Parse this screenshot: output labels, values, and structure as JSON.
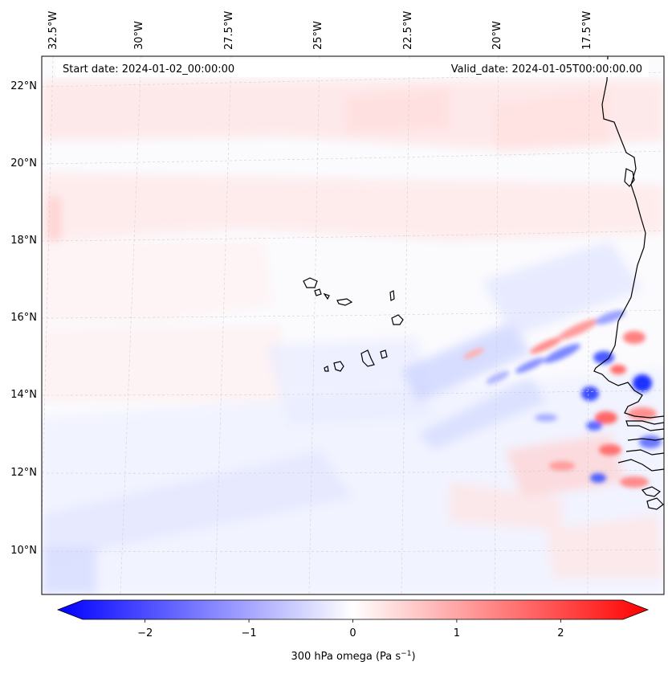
{
  "map": {
    "header": {
      "start_date": "Start date: 2024-01-02_00:00:00",
      "valid_date": "Valid_date: 2024-01-05T00:00:00.00"
    },
    "lon_labels": [
      "32.5°W",
      "30°W",
      "27.5°W",
      "25°W",
      "22.5°W",
      "20°W",
      "17.5°W"
    ],
    "lat_labels": [
      "22°N",
      "20°N",
      "18°N",
      "16°N",
      "14°N",
      "12°N",
      "10°N"
    ],
    "field": "300 hPa omega",
    "colorbar": {
      "label": "300 hPa omega (Pa s",
      "label_exp": "−1",
      "label_close": ")",
      "ticks": [
        "−2",
        "−1",
        "0",
        "1",
        "2"
      ],
      "range": [
        -2.6,
        2.6
      ],
      "colormap": [
        "#0000ff",
        "#ffffff",
        "#ff0000"
      ]
    },
    "colors": {
      "coast": "#000000",
      "gridline": "#c8c8c8",
      "positive": "#ff0000",
      "negative": "#0000ff"
    }
  }
}
